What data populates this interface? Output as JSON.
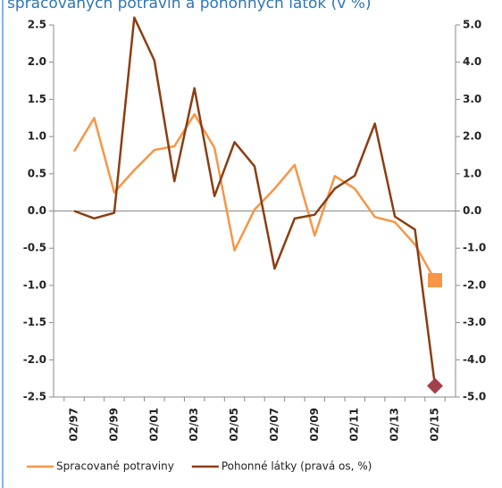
{
  "chart_data": {
    "type": "line",
    "title": "spracovaných potravín a pohonných látok (v %)",
    "categories": [
      "02/97",
      null,
      "02/99",
      null,
      "02/01",
      null,
      "02/03",
      null,
      "02/05",
      null,
      "02/07",
      null,
      "02/09",
      null,
      "02/11",
      null,
      "02/13",
      null,
      "02/15"
    ],
    "series": [
      {
        "name": "Spracované potraviny",
        "color": "#f79646",
        "axis": "y",
        "values": [
          0.8,
          1.25,
          0.25,
          0.55,
          0.82,
          0.87,
          1.3,
          0.85,
          -0.53,
          0.02,
          0.3,
          0.62,
          -0.33,
          0.47,
          0.3,
          -0.08,
          -0.15,
          -0.45,
          -0.93
        ]
      },
      {
        "name": "Pohonné látky (pravá os, %)",
        "color": "#8b3e12",
        "axis": "y2",
        "values": [
          0.0,
          -0.2,
          -0.05,
          5.2,
          4.05,
          0.8,
          3.3,
          0.4,
          1.85,
          1.2,
          -1.55,
          -0.2,
          -0.1,
          0.6,
          0.95,
          2.35,
          -0.15,
          -0.5,
          -4.7
        ]
      }
    ],
    "ylim": [
      -2.5,
      2.5
    ],
    "yticks": [
      {
        "value": 2.5,
        "label": "2.5"
      },
      {
        "value": 2,
        "label": "2.0"
      },
      1.5,
      {
        "value": 1,
        "label": "1.0"
      },
      0.5,
      {
        "value": 0,
        "label": "0.0"
      },
      -0.5,
      {
        "value": -1,
        "label": "-1.0"
      },
      -1.5,
      {
        "value": -2,
        "label": "-2.0"
      },
      -2.5
    ],
    "y2lim": [
      -5,
      5
    ],
    "y2ticks": [
      {
        "value": 5,
        "label": "5.0"
      },
      {
        "value": 4,
        "label": "4.0"
      },
      {
        "value": 3,
        "label": "3.0"
      },
      {
        "value": 2,
        "label": "2.0"
      },
      {
        "value": 1,
        "label": "1.0"
      },
      {
        "value": 0,
        "label": "0.0"
      },
      {
        "value": -1,
        "label": "-1.0"
      },
      {
        "value": -2,
        "label": "-2.0"
      },
      {
        "value": -3,
        "label": "-3.0"
      },
      {
        "value": -4,
        "label": "-4.0"
      },
      {
        "value": -5,
        "label": "-5.0"
      }
    ],
    "legend": "bottom"
  }
}
